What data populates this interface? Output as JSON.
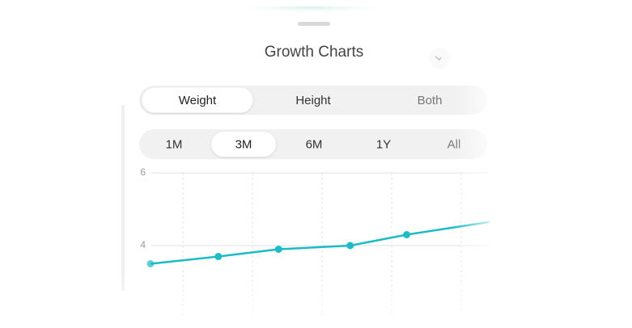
{
  "header": {
    "title": "Growth Charts"
  },
  "metric_tabs": {
    "options": [
      "Weight",
      "Height",
      "Both"
    ],
    "selected": 0
  },
  "range_tabs": {
    "options": [
      "1M",
      "3M",
      "6M",
      "1Y",
      "All"
    ],
    "selected": 1
  },
  "chart_data": {
    "type": "line",
    "x": [
      0,
      18,
      34,
      53,
      68,
      90
    ],
    "values": [
      3.5,
      3.7,
      3.9,
      4.0,
      4.3,
      4.65
    ],
    "color": "#1cbcc6",
    "xlim": [
      0,
      90
    ],
    "ylim": [
      2,
      6
    ],
    "yticks": [
      4,
      6
    ],
    "grid": true
  }
}
